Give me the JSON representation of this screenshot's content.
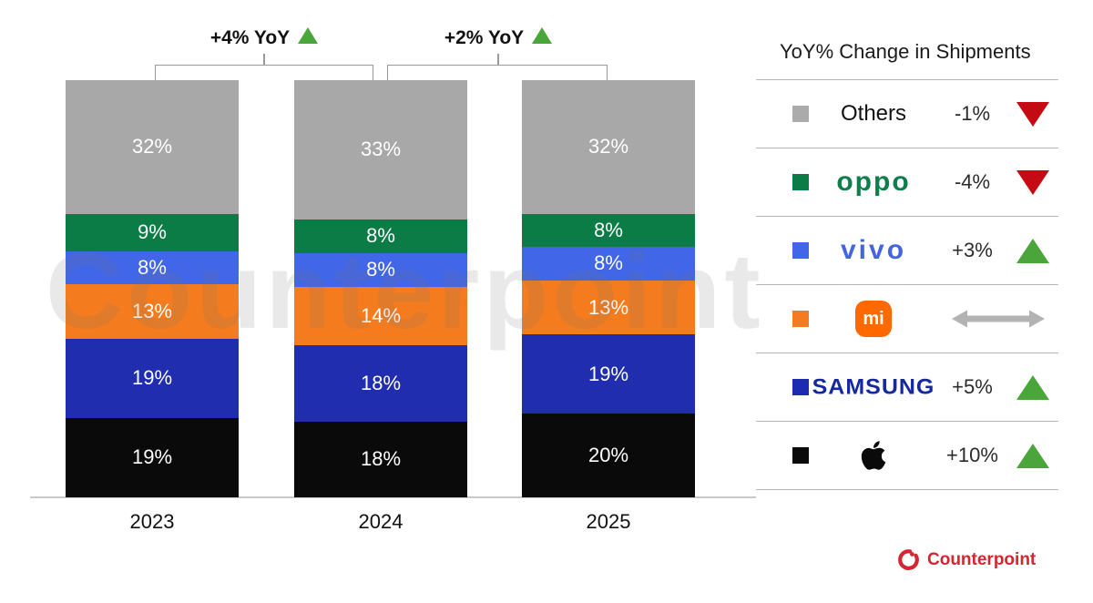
{
  "watermark": "Counterpoint",
  "chart_data": {
    "type": "bar",
    "stacked": true,
    "title": "",
    "xlabel": "",
    "ylabel": "",
    "categories": [
      "2023",
      "2024",
      "2025"
    ],
    "series_order": "top-to-bottom",
    "series": [
      {
        "name": "Others",
        "color": "#a8a8a8",
        "values": [
          32,
          33,
          32
        ]
      },
      {
        "name": "OPPO",
        "color": "#0b7c45",
        "values": [
          9,
          8,
          8
        ]
      },
      {
        "name": "vivo",
        "color": "#4166e8",
        "values": [
          8,
          8,
          8
        ]
      },
      {
        "name": "Xiaomi",
        "color": "#f57c1e",
        "values": [
          13,
          14,
          13
        ]
      },
      {
        "name": "Samsung",
        "color": "#1f2dae",
        "values": [
          19,
          18,
          19
        ]
      },
      {
        "name": "Apple",
        "color": "#0a0a0a",
        "values": [
          19,
          18,
          20
        ]
      }
    ],
    "value_suffix": "%",
    "grid": false,
    "legend_position": "right",
    "annotations": [
      {
        "label": "+4% YoY",
        "direction": "up",
        "between": [
          "2023",
          "2024"
        ]
      },
      {
        "label": "+2% YoY",
        "direction": "up",
        "between": [
          "2024",
          "2025"
        ]
      }
    ]
  },
  "legend": {
    "title": "YoY% Change in Shipments",
    "rows": [
      {
        "name": "Others",
        "label": "Others",
        "swatch": "#ababab",
        "change": "-1%",
        "direction": "down"
      },
      {
        "name": "OPPO",
        "logo_text": "oppo",
        "logo_color": "#0e7f4a",
        "swatch": "#0b7c45",
        "change": "-4%",
        "direction": "down"
      },
      {
        "name": "vivo",
        "logo_text": "vivo",
        "logo_color": "#4565e0",
        "swatch": "#4166e8",
        "change": "+3%",
        "direction": "up"
      },
      {
        "name": "Xiaomi",
        "logo_text": "mi",
        "logo_color": "#ff6900",
        "swatch": "#f57c1e",
        "change": "",
        "direction": "flat"
      },
      {
        "name": "Samsung",
        "logo_text": "SAMSUNG",
        "logo_color": "#1428a0",
        "swatch": "#1c2bb0",
        "change": "+5%",
        "direction": "up"
      },
      {
        "name": "Apple",
        "swatch": "#0a0a0a",
        "change": "+10%",
        "direction": "up"
      }
    ]
  },
  "brand": {
    "name": "Counterpoint",
    "color": "#d22630"
  }
}
